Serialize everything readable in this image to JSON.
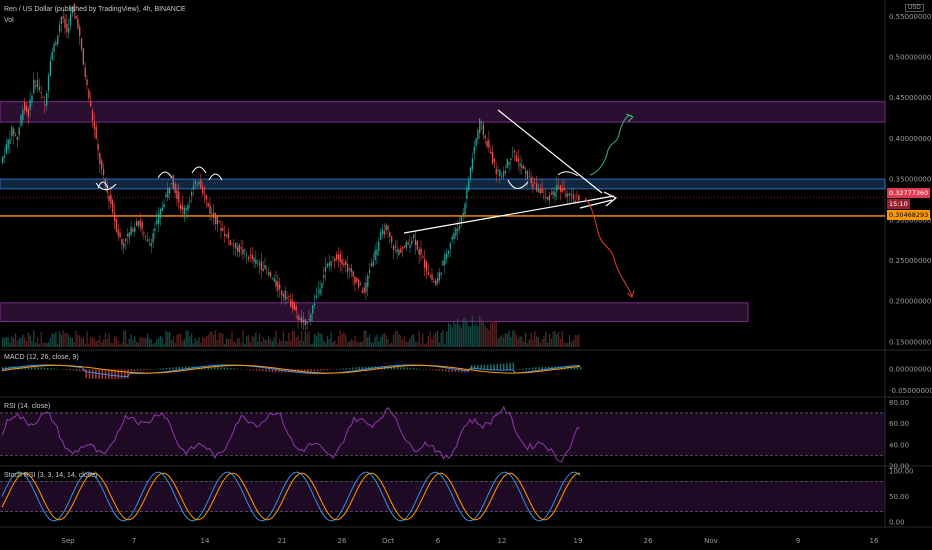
{
  "header": {
    "title": "Ren / US Dollar (published by TradingView), 4h, BINANCE",
    "vol_label": "Vol"
  },
  "indicators": {
    "macd": "MACD (12, 26, close, 9)",
    "rsi": "RSI (14, close)",
    "stoch": "Stoch RSI (3, 3, 14, 14, close)"
  },
  "scale_button": "USD",
  "colors": {
    "background": "#000000",
    "zone_purple": "#7a2b8a",
    "zone_blue": "#2d6fb5",
    "support_orange": "#ff9800",
    "price_badge": "#e03a4f",
    "bull_projection": "#3cb371",
    "bear_projection": "#e0402a",
    "rsi_line": "#8e3aa8",
    "stoch_k": "#3a8ee0",
    "stoch_d": "#ff9800"
  },
  "price_badges": {
    "current": "0.32777360",
    "countdown": "15:10",
    "support": "0.30468293"
  },
  "chart_data": [
    {
      "type": "line",
      "panel": "price",
      "ylim": [
        0.14,
        0.57
      ],
      "y_ticks": [
        "0.15000000",
        "0.20000000",
        "0.25000000",
        "0.30000000",
        "0.35000000",
        "0.40000000",
        "0.45000000",
        "0.50000000",
        "0.55000000"
      ],
      "x_tick_labels": [
        "Sep",
        "7",
        "14",
        "21",
        "26",
        "Oct",
        "6",
        "12",
        "19",
        "26",
        "Nov",
        "9",
        "16"
      ],
      "series": [
        {
          "values": [
            0.37,
            0.39,
            0.41,
            0.4,
            0.44,
            0.43,
            0.47,
            0.46,
            0.44,
            0.5,
            0.52,
            0.55,
            0.53,
            0.56,
            0.54,
            0.49,
            0.45,
            0.41,
            0.37,
            0.34,
            0.32,
            0.29,
            0.27,
            0.28,
            0.29,
            0.3,
            0.28,
            0.27,
            0.29,
            0.31,
            0.33,
            0.35,
            0.33,
            0.31,
            0.32,
            0.34,
            0.35,
            0.33,
            0.31,
            0.3,
            0.29,
            0.28,
            0.27,
            0.265,
            0.26,
            0.255,
            0.25,
            0.245,
            0.24,
            0.23,
            0.22,
            0.21,
            0.205,
            0.195,
            0.18,
            0.17,
            0.18,
            0.2,
            0.22,
            0.24,
            0.25,
            0.255,
            0.25,
            0.24,
            0.23,
            0.22,
            0.21,
            0.24,
            0.26,
            0.28,
            0.29,
            0.27,
            0.26,
            0.265,
            0.27,
            0.28,
            0.26,
            0.245,
            0.23,
            0.22,
            0.24,
            0.26,
            0.28,
            0.29,
            0.31,
            0.35,
            0.39,
            0.42,
            0.4,
            0.38,
            0.36,
            0.355,
            0.37,
            0.385,
            0.37,
            0.36,
            0.35,
            0.34,
            0.335,
            0.325,
            0.33,
            0.34,
            0.335,
            0.33,
            0.325,
            0.328
          ]
        }
      ],
      "zones": [
        {
          "name": "upper-resistance-zone",
          "from": 0.42,
          "to": 0.445,
          "color": "zone_purple"
        },
        {
          "name": "blue-resistance-zone",
          "from": 0.338,
          "to": 0.35,
          "color": "zone_blue"
        },
        {
          "name": "lower-support-zone",
          "from": 0.175,
          "to": 0.198,
          "color": "zone_purple"
        }
      ],
      "support_level": 0.30468293
    },
    {
      "type": "line",
      "panel": "macd",
      "title": "MACD (12, 26, close, 9)",
      "y_ticks": [
        "0.00000000",
        "-0.05000000"
      ],
      "ylim": [
        -0.065,
        0.045
      ]
    },
    {
      "type": "line",
      "panel": "rsi",
      "title": "RSI (14, close)",
      "y_ticks": [
        "80.00",
        "60.00",
        "40.00",
        "20.00"
      ],
      "ylim": [
        20,
        85
      ],
      "bands": [
        70,
        30
      ]
    },
    {
      "type": "line",
      "panel": "stoch",
      "title": "Stoch RSI (3, 3, 14, 14, close)",
      "y_ticks": [
        "100.00",
        "50.00",
        "0.00"
      ],
      "ylim": [
        -10,
        110
      ],
      "bands": [
        80,
        20
      ]
    }
  ]
}
